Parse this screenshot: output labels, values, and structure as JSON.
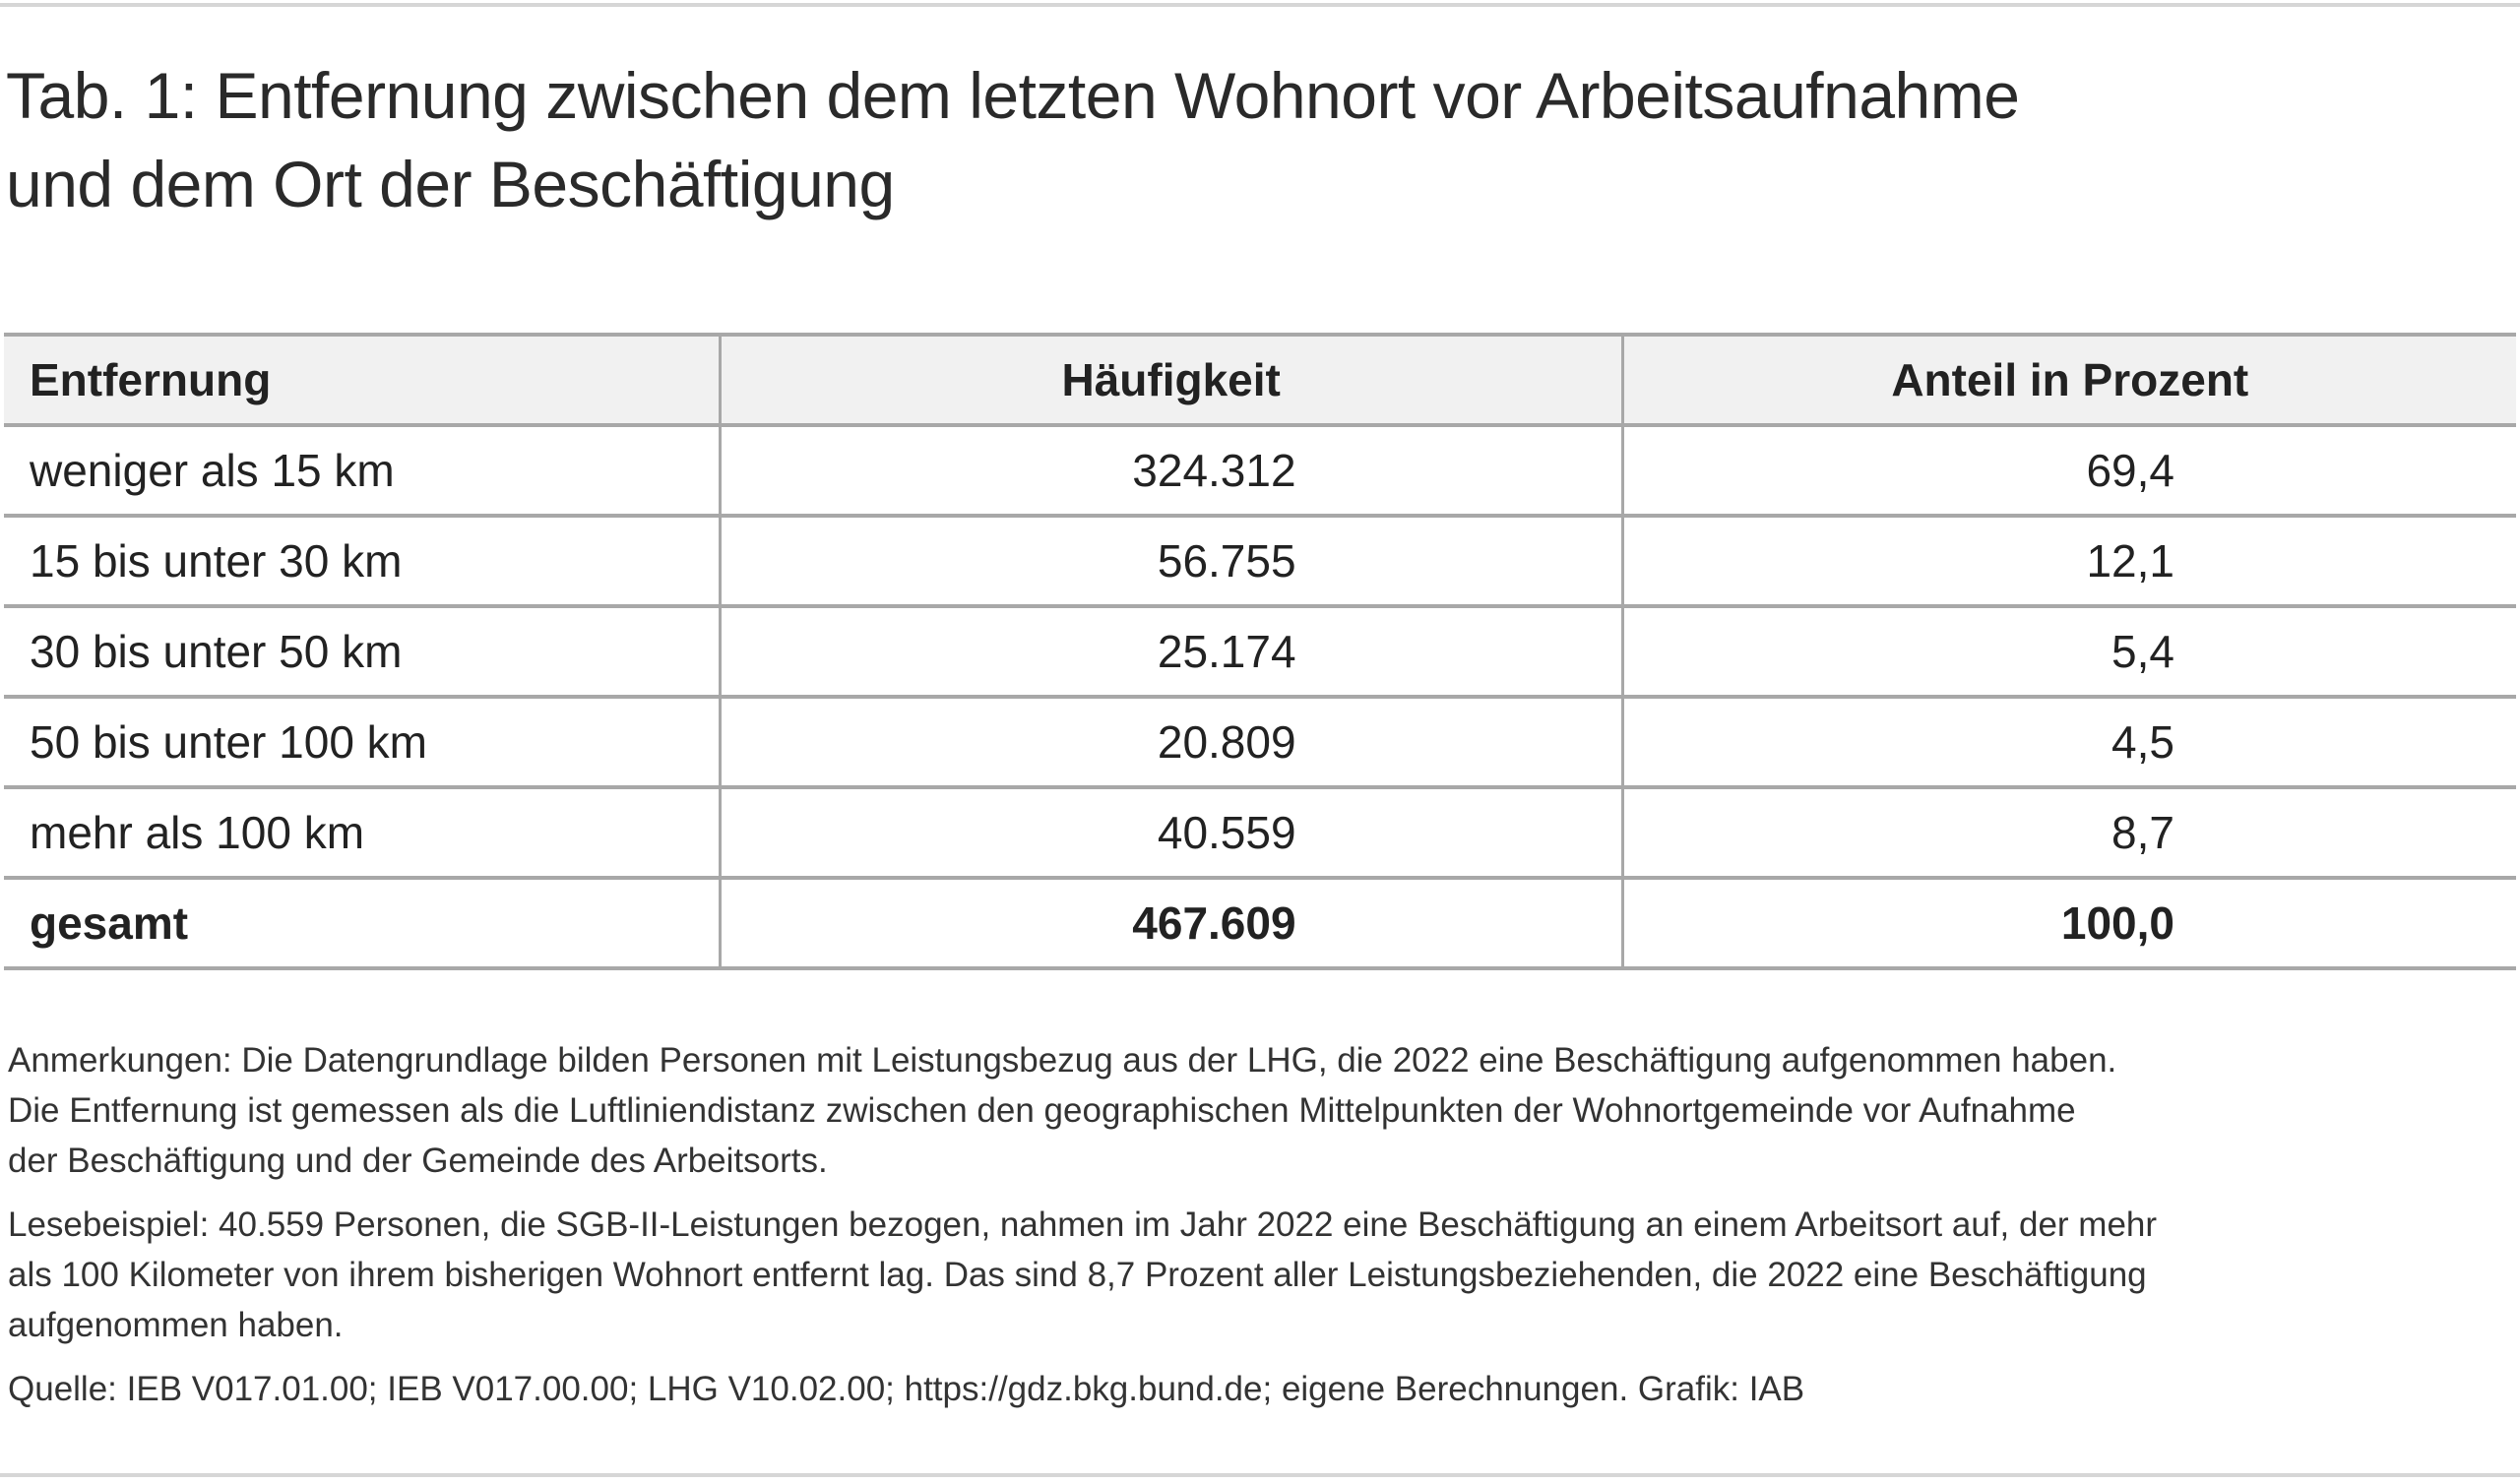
{
  "title": {
    "line1": "Tab. 1: Entfernung zwischen dem letzten Wohnort vor Arbeitsaufnahme",
    "line2": "und dem Ort der Beschäftigung"
  },
  "table": {
    "headers": [
      "Entfernung",
      "Häufigkeit",
      "Anteil in Prozent"
    ],
    "rows": [
      [
        "weniger als 15 km",
        "324.312",
        "69,4"
      ],
      [
        "15 bis unter 30 km",
        "56.755",
        "12,1"
      ],
      [
        "30 bis unter 50 km",
        "25.174",
        "5,4"
      ],
      [
        "50 bis unter 100 km",
        "20.809",
        "4,5"
      ],
      [
        "mehr als 100 km",
        "40.559",
        "8,7"
      ]
    ],
    "total": [
      "gesamt",
      "467.609",
      "100,0"
    ]
  },
  "notes": {
    "anmerkungen": [
      "Anmerkungen: Die Datengrundlage bilden Personen mit Leistungsbezug aus der LHG, die 2022 eine Beschäftigung aufgenommen haben.",
      "Die Entfernung ist gemessen als die Luftliniendistanz zwischen den geographischen Mittelpunkten der Wohnortgemeinde vor Aufnahme",
      "der Beschäftigung und der Gemeinde des Arbeitsorts."
    ],
    "lesebeispiel": [
      "Lesebeispiel: 40.559 Personen, die SGB-II-Leistungen bezogen, nahmen im Jahr 2022 eine Beschäftigung an einem Arbeitsort auf, der mehr",
      "als 100 Kilometer von ihrem bisherigen Wohnort entfernt lag. Das sind 8,7 Prozent aller Leistungsbeziehenden, die 2022 eine Beschäftigung",
      "aufgenommen haben."
    ],
    "quelle": "Quelle: IEB V017.01.00; IEB V017.00.00; LHG V10.02.00; https://gdz.bkg.bund.de; eigene Berechnungen. Grafik: IAB"
  },
  "colors": {
    "header_bg": "#f1f1f1",
    "grid": "#a8a8a8",
    "rule": "#d6d6d6"
  }
}
